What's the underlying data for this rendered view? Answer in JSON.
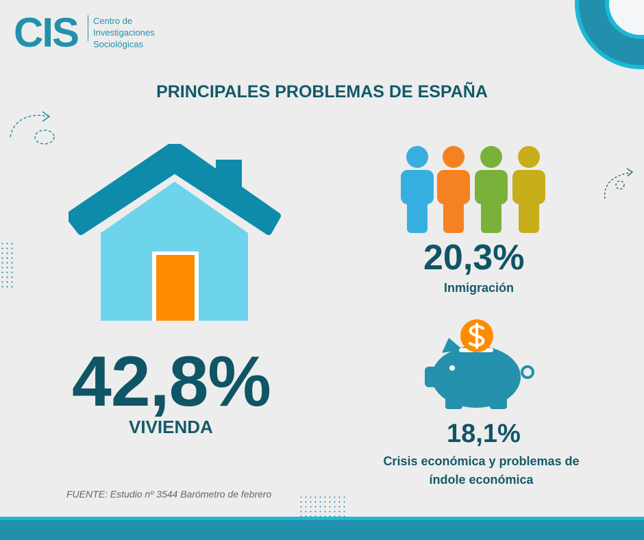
{
  "logo": {
    "letters": "CIS",
    "name_line1": "Centro de",
    "name_line2": "Investigaciones",
    "name_line3": "Sociológicas"
  },
  "title": "PRINCIPALES PROBLEMAS DE ESPAÑA",
  "main_problem": {
    "value": "42,8%",
    "label": "VIVIENDA",
    "icon": "house-icon"
  },
  "problems": [
    {
      "value": "20,3%",
      "label": "Inmigración",
      "icon": "people-icon"
    },
    {
      "value": "18,1%",
      "label_line1": "Crisis económica y problemas de",
      "label_line2": "índole económica",
      "icon": "piggy-bank-icon"
    }
  ],
  "source": "FUENTE: Estudio nº 3544 Barómetro de febrero",
  "colors": {
    "background": "#ededed",
    "text": "#135a68",
    "accent": "#228fac",
    "house_roof": "#0e8bab",
    "house_wall": "#6dd4ec",
    "door": "#ff8c00"
  }
}
